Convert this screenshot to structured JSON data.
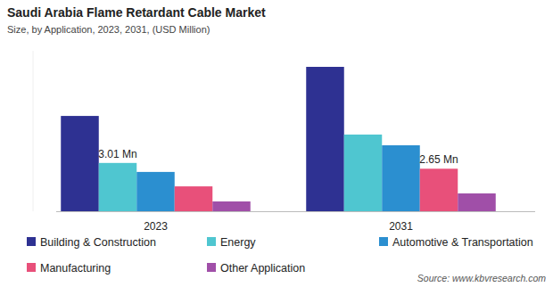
{
  "chart_data": {
    "type": "bar",
    "title": "Saudi Arabia Flame Retardant Cable Market",
    "subtitle": "Size, by Application, 2023, 2031, (USD Million)",
    "source": "Source: www.kbvresearch.com",
    "categories": [
      "2023",
      "2031"
    ],
    "series": [
      {
        "name": "Building & Construction",
        "color": "#2e3192",
        "values": [
          5.94,
          9.0
        ]
      },
      {
        "name": "Energy",
        "color": "#4fc6d0",
        "values": [
          3.01,
          4.78
        ],
        "value_labels": [
          "3.01 Mn",
          null
        ]
      },
      {
        "name": "Automotive & Transportation",
        "color": "#2b8fd0",
        "values": [
          2.45,
          4.11
        ]
      },
      {
        "name": "Manufacturing",
        "color": "#e8507a",
        "values": [
          1.55,
          2.65
        ],
        "value_labels": [
          null,
          "2.65 Mn"
        ]
      },
      {
        "name": "Other Application",
        "color": "#a04fa8",
        "values": [
          0.61,
          1.11
        ]
      }
    ],
    "ylim": [
      0,
      10
    ],
    "tick_labels": "x",
    "legend": "bottom"
  }
}
